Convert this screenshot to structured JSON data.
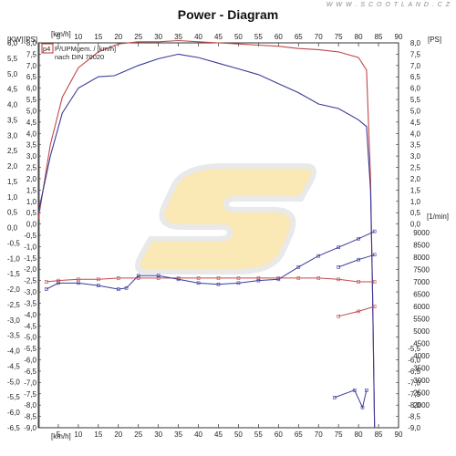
{
  "header": {
    "title": "Power - Diagram",
    "watermark": "W W W . S C O O T L A N D . C Z"
  },
  "legend": {
    "tag": "p4",
    "line1": "P/UPMgem. / [km/h]",
    "line2": "nach DIN 70020"
  },
  "colors": {
    "power": "#3a3a9a",
    "rpm": "#c04848",
    "logo": "#f4c63a",
    "logo_outline": "#c8c8c8"
  },
  "chart_data": {
    "type": "line",
    "title": "Power - Diagram",
    "x_unit": "[km/h]",
    "xlim": [
      0,
      90
    ],
    "x_ticks": [
      0,
      5,
      10,
      15,
      20,
      25,
      30,
      35,
      40,
      45,
      50,
      55,
      60,
      65,
      70,
      75,
      80,
      85,
      90
    ],
    "y_left_kw": {
      "unit": "[KW]",
      "range": [
        -6.5,
        6.0
      ],
      "ticks": [
        6.0,
        5.5,
        5.0,
        4.5,
        4.0,
        3.5,
        3.0,
        2.5,
        2.0,
        1.5,
        1.0,
        0.5,
        0.0,
        -0.5,
        -1.0,
        -1.5,
        -2.0,
        -2.5,
        -3.0,
        -3.5,
        -4.0,
        -4.5,
        -5.0,
        -5.5,
        -6.0,
        -6.5
      ]
    },
    "y_left_ps": {
      "unit": "[PS]",
      "range": [
        -9.0,
        8.0
      ],
      "ticks": [
        8.0,
        7.5,
        7.0,
        6.5,
        6.0,
        5.5,
        5.0,
        4.5,
        4.0,
        3.5,
        3.0,
        2.5,
        2.0,
        1.5,
        1.0,
        0.5,
        0.0,
        -0.5,
        -1.0,
        -1.5,
        -2.0,
        -2.5,
        -3.0,
        -3.5,
        -4.0,
        -4.5,
        -5.0,
        -5.5,
        -6.0,
        -6.5,
        -7.0,
        -7.5,
        -8.0,
        -8.5,
        -9.0
      ]
    },
    "y_right_ps": {
      "unit": "[PS]",
      "range": [
        -9.0,
        8.0
      ],
      "ticks": [
        8.0,
        7.5,
        7.0,
        6.5,
        6.0,
        5.5,
        5.0,
        4.5,
        4.0,
        3.5,
        3.0,
        2.5,
        2.0,
        1.5,
        1.0,
        0.5,
        0.0,
        -0.5,
        -1.0,
        -1.5,
        -2.0,
        -2.5,
        -3.0,
        -3.5,
        -4.0,
        -4.5,
        -5.0,
        -5.5,
        -6.0,
        -6.5,
        -7.0,
        -7.5,
        -8.0,
        -8.5,
        -9.0
      ]
    },
    "y_right_rpm": {
      "unit": "[1/min]",
      "range": [
        2000,
        9000
      ],
      "ticks": [
        9000,
        8500,
        8000,
        7500,
        7000,
        6500,
        6000,
        5500,
        5000,
        4500,
        4000,
        3500,
        3000,
        2500,
        2000
      ]
    },
    "series": [
      {
        "color": "#c04848",
        "points_ps": [
          [
            0,
            0.2
          ],
          [
            3,
            3.5
          ],
          [
            6,
            5.6
          ],
          [
            10,
            6.9
          ],
          [
            15,
            7.6
          ],
          [
            20,
            7.95
          ],
          [
            25,
            8.05
          ],
          [
            30,
            8.05
          ],
          [
            35,
            8.1
          ],
          [
            40,
            8.05
          ],
          [
            45,
            8.0
          ],
          [
            50,
            7.95
          ],
          [
            55,
            7.9
          ],
          [
            60,
            7.85
          ],
          [
            65,
            7.75
          ],
          [
            70,
            7.7
          ],
          [
            75,
            7.6
          ],
          [
            80,
            7.35
          ],
          [
            82,
            6.8
          ],
          [
            83,
            2.0
          ],
          [
            83.5,
            -3.0
          ],
          [
            84,
            -9.0
          ]
        ]
      },
      {
        "color": "#3a3a9a",
        "points_ps": [
          [
            0,
            0.5
          ],
          [
            3,
            3.0
          ],
          [
            6,
            4.9
          ],
          [
            10,
            6.0
          ],
          [
            15,
            6.5
          ],
          [
            19,
            6.55
          ],
          [
            21,
            6.7
          ],
          [
            25,
            7.0
          ],
          [
            30,
            7.3
          ],
          [
            35,
            7.5
          ],
          [
            40,
            7.35
          ],
          [
            45,
            7.1
          ],
          [
            50,
            6.85
          ],
          [
            55,
            6.6
          ],
          [
            60,
            6.2
          ],
          [
            65,
            5.8
          ],
          [
            70,
            5.3
          ],
          [
            75,
            5.1
          ],
          [
            80,
            4.6
          ],
          [
            82,
            4.3
          ],
          [
            83,
            1.5
          ],
          [
            83.5,
            -3.0
          ],
          [
            84,
            -9.0
          ]
        ]
      }
    ],
    "rpm_series": [
      {
        "color": "#c04848",
        "points_rpm": [
          [
            2,
            7000
          ],
          [
            5,
            7050
          ],
          [
            10,
            7100
          ],
          [
            15,
            7100
          ],
          [
            20,
            7150
          ],
          [
            25,
            7150
          ],
          [
            30,
            7150
          ],
          [
            35,
            7150
          ],
          [
            40,
            7150
          ],
          [
            45,
            7150
          ],
          [
            50,
            7150
          ],
          [
            55,
            7150
          ],
          [
            60,
            7150
          ],
          [
            65,
            7150
          ],
          [
            70,
            7150
          ],
          [
            75,
            7100
          ],
          [
            80,
            7000
          ],
          [
            84,
            7000
          ]
        ]
      },
      {
        "color": "#3a3a9a",
        "points_rpm": [
          [
            2,
            6700
          ],
          [
            5,
            6950
          ],
          [
            10,
            6950
          ],
          [
            15,
            6850
          ],
          [
            20,
            6700
          ],
          [
            22,
            6750
          ],
          [
            25,
            7250
          ],
          [
            30,
            7250
          ],
          [
            35,
            7100
          ],
          [
            40,
            6950
          ],
          [
            45,
            6900
          ],
          [
            50,
            6950
          ],
          [
            55,
            7050
          ],
          [
            60,
            7100
          ],
          [
            65,
            7600
          ],
          [
            70,
            8050
          ],
          [
            75,
            8400
          ],
          [
            80,
            8750
          ],
          [
            84,
            9050
          ]
        ]
      },
      {
        "color": "#3a3a9a",
        "points_rpm": [
          [
            75,
            7600
          ],
          [
            80,
            7900
          ],
          [
            84,
            8100
          ]
        ]
      },
      {
        "color": "#c04848",
        "points_rpm": [
          [
            75,
            5600
          ],
          [
            80,
            5800
          ],
          [
            84,
            6000
          ]
        ]
      },
      {
        "color": "#3a3a9a",
        "points_rpm": [
          [
            74,
            2300
          ],
          [
            79,
            2600
          ],
          [
            81,
            1900
          ],
          [
            82,
            2600
          ]
        ]
      }
    ],
    "grid": false
  }
}
